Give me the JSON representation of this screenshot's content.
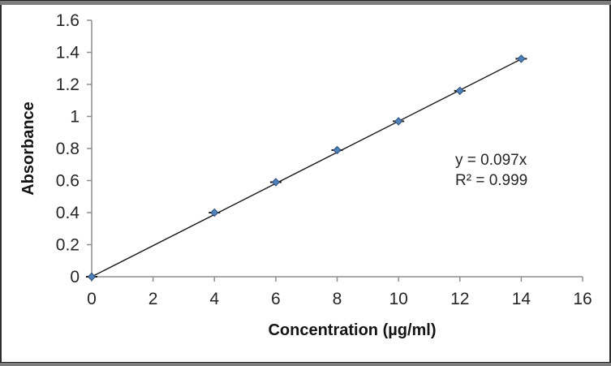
{
  "chart_data": {
    "type": "scatter",
    "title": "",
    "xlabel": "Concentration (µg/ml)",
    "ylabel": "Absorbance",
    "x": [
      0,
      4,
      6,
      8,
      10,
      12,
      14
    ],
    "y": [
      0,
      0.4,
      0.59,
      0.79,
      0.97,
      1.16,
      1.36
    ],
    "marker": "diamond-with-error-bar-caps",
    "trendline": {
      "slope": 0.097,
      "intercept": 0,
      "x_start": 0,
      "x_end": 14
    },
    "annotation": {
      "equation": "y = 0.097x",
      "r_squared": "R² = 0.999"
    },
    "xlim": [
      0,
      16
    ],
    "ylim": [
      0,
      1.6
    ],
    "x_ticks": [
      0,
      2,
      4,
      6,
      8,
      10,
      12,
      14,
      16
    ],
    "y_ticks": [
      0,
      0.2,
      0.4,
      0.6,
      0.8,
      1,
      1.2,
      1.4,
      1.6
    ],
    "grid": false,
    "legend": "none",
    "colors": {
      "marker_fill": "#4F81BD",
      "marker_edge": "#2C4D75",
      "error_bar": "#1a1a1a",
      "trendline": "#1a1a1a",
      "axis": "#8e8e8e",
      "tick_text": "#262626"
    }
  }
}
